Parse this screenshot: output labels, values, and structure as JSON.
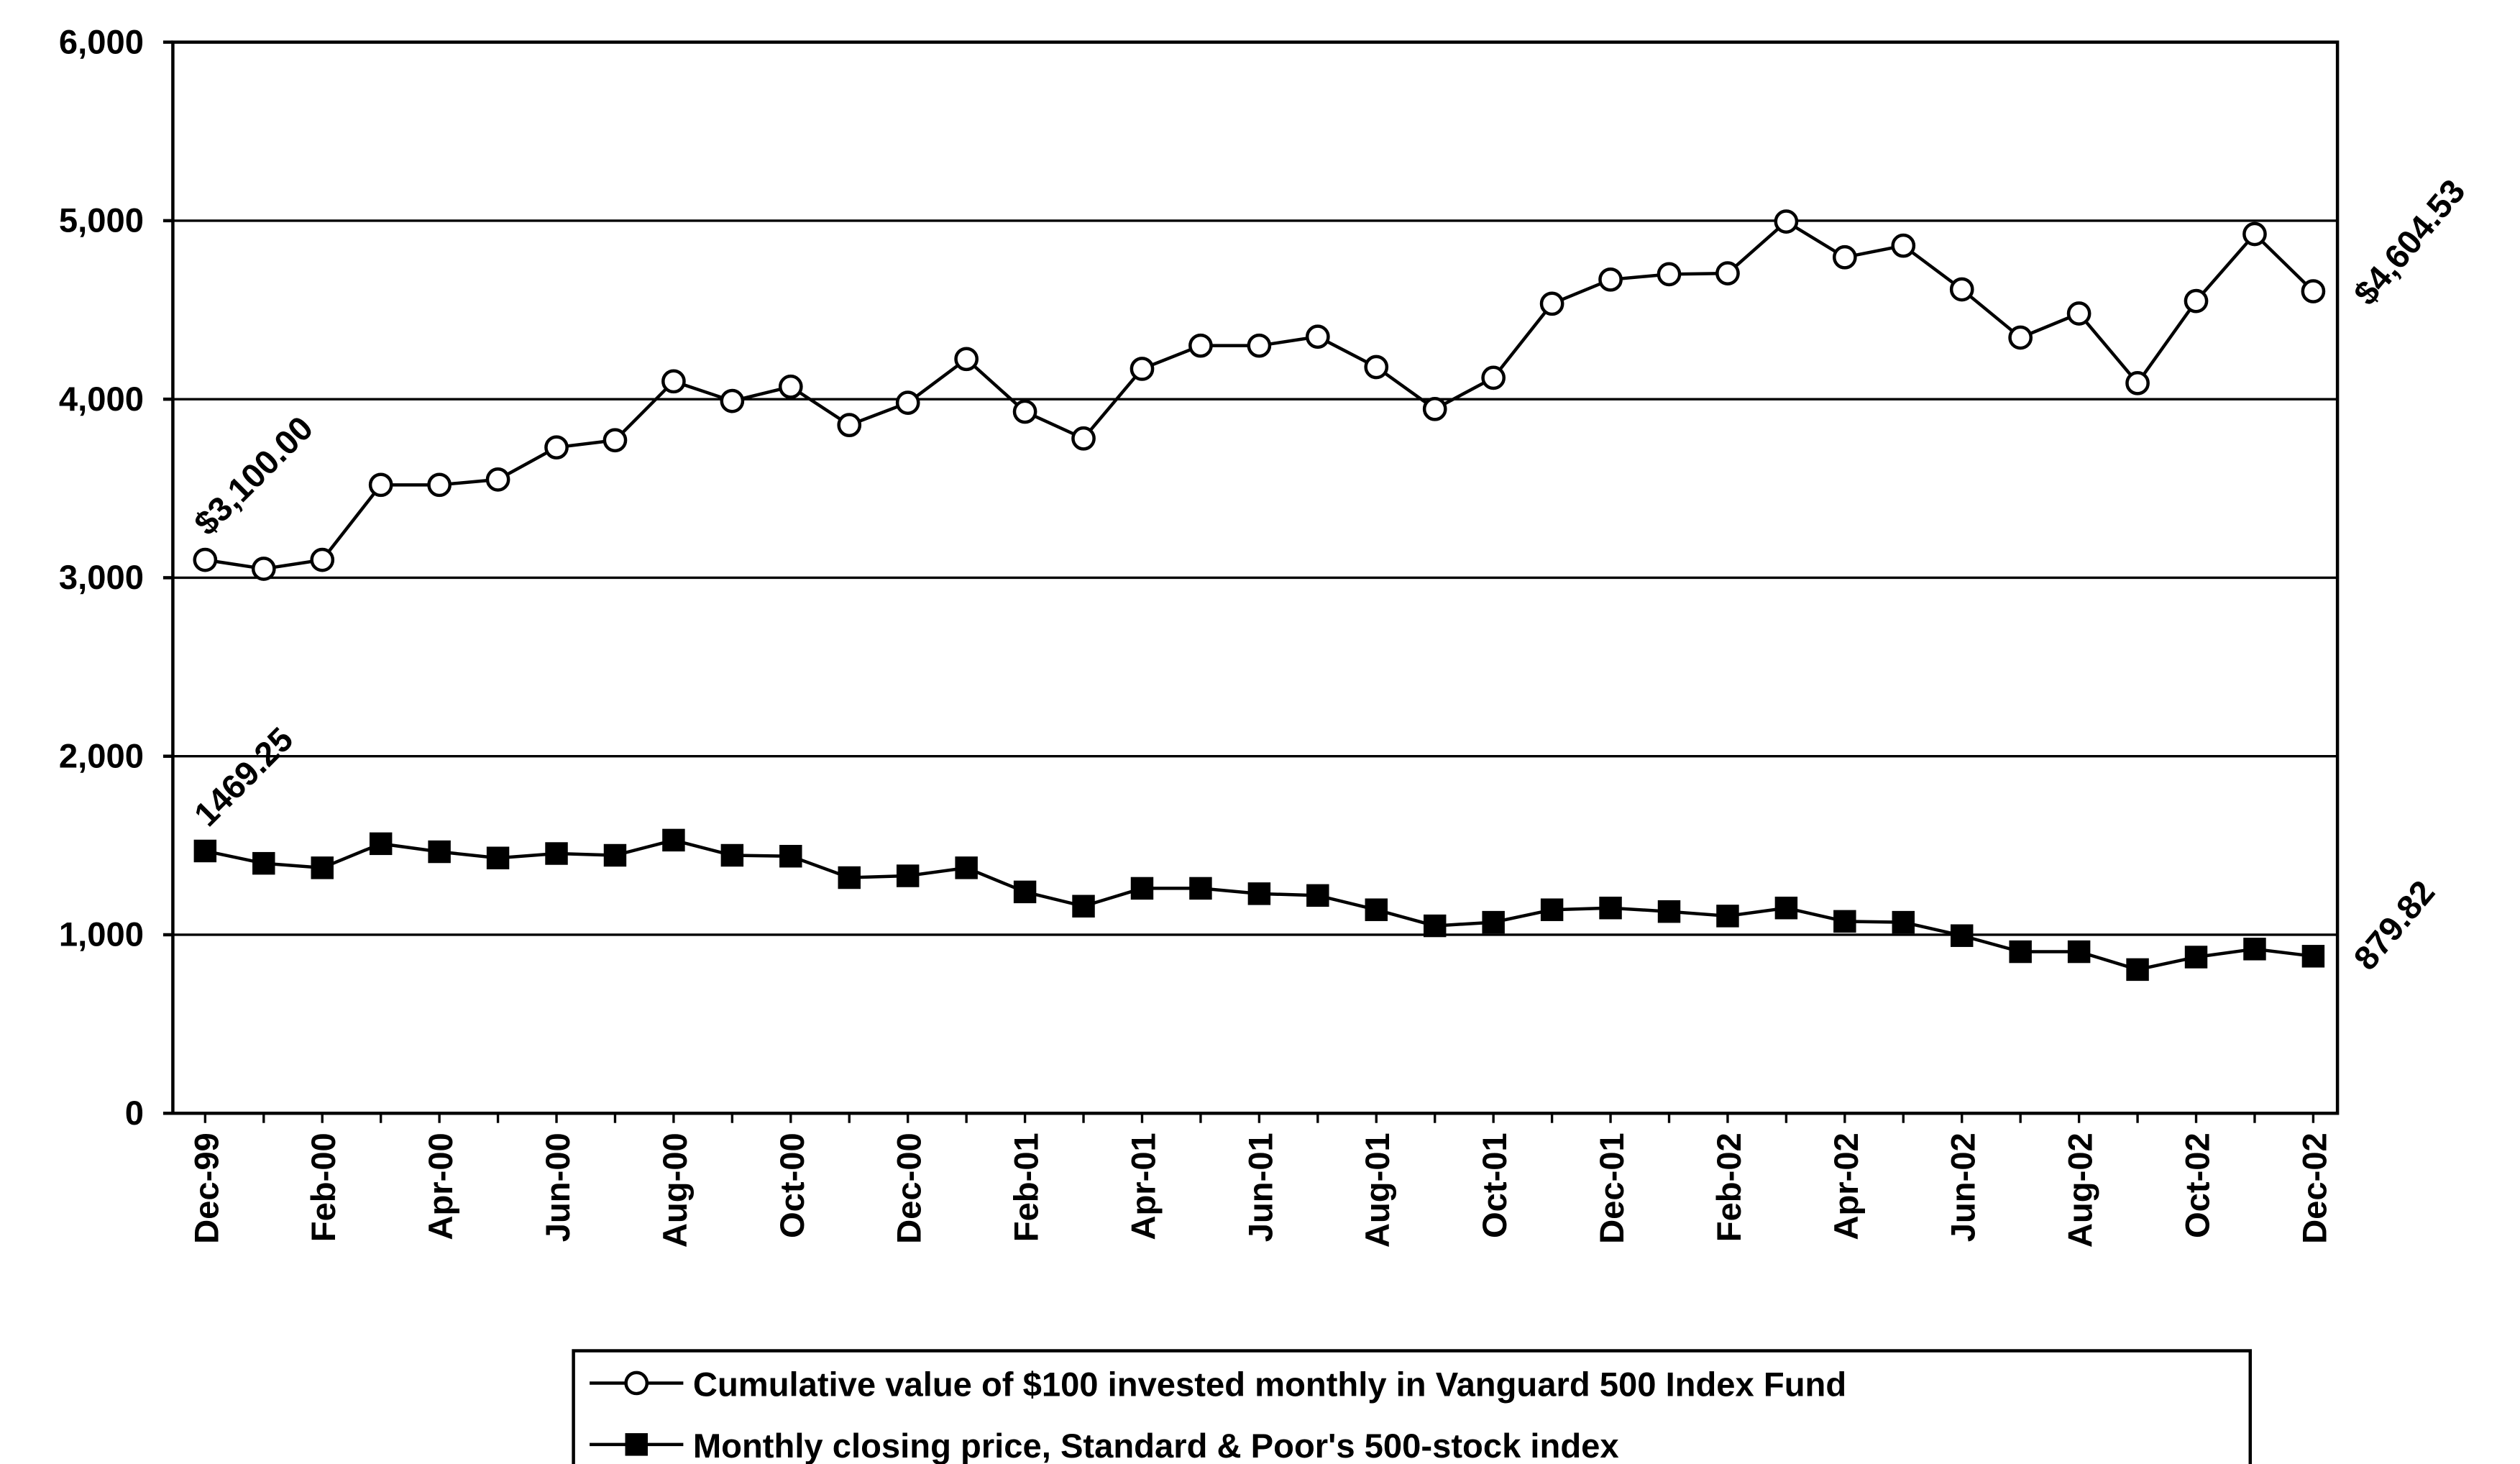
{
  "chart_data": {
    "type": "line",
    "categories": [
      "Dec-99",
      null,
      "Feb-00",
      null,
      "Apr-00",
      null,
      "Jun-00",
      null,
      "Aug-00",
      null,
      "Oct-00",
      null,
      "Dec-00",
      null,
      "Feb-01",
      null,
      "Apr-01",
      null,
      "Jun-01",
      null,
      "Aug-01",
      null,
      "Oct-01",
      null,
      "Dec-01",
      null,
      "Feb-02",
      null,
      "Apr-02",
      null,
      "Jun-02",
      null,
      "Aug-02",
      null,
      "Oct-02",
      null,
      "Dec-02"
    ],
    "series": [
      {
        "name": "Cumulative value of $100 invested monthly in Vanguard 500 Index Fund",
        "color": "#000000",
        "marker": "circle",
        "values": [
          3100,
          3050,
          3100,
          3520,
          3520,
          3550,
          3730,
          3770,
          4100,
          3990,
          4070,
          3855,
          3980,
          4225,
          3930,
          3780,
          4170,
          4300,
          4300,
          4350,
          4180,
          3945,
          4120,
          4535,
          4670,
          4700,
          4705,
          4995,
          4795,
          4860,
          4615,
          4345,
          4480,
          4090,
          4550,
          4925,
          4604.53
        ],
        "value_labels": [
          "$3,100.00",
          null,
          null,
          null,
          null,
          null,
          null,
          null,
          null,
          null,
          null,
          null,
          null,
          null,
          null,
          null,
          null,
          null,
          null,
          null,
          null,
          null,
          null,
          null,
          null,
          null,
          null,
          null,
          null,
          null,
          null,
          null,
          null,
          null,
          null,
          null,
          "$4,604.53"
        ]
      },
      {
        "name": "Monthly closing price, Standard & Poor's 500-stock index",
        "color": "#000000",
        "marker": "square",
        "values": [
          1469.25,
          1400,
          1375,
          1510,
          1465,
          1430,
          1455,
          1445,
          1530,
          1445,
          1440,
          1320,
          1330,
          1375,
          1240,
          1160,
          1260,
          1260,
          1230,
          1220,
          1140,
          1050,
          1070,
          1140,
          1150,
          1130,
          1105,
          1150,
          1075,
          1070,
          995,
          905,
          905,
          805,
          875,
          920,
          879.82
        ],
        "labeled_points": [
          0,
          36
        ]
      }
    ],
    "ylim": [
      0,
      6000
    ],
    "yticks": [
      0,
      {
        "value": 1000,
        "label": "1,000"
      },
      {
        "value": 2000,
        "label": "2,000"
      },
      {
        "value": 3000,
        "label": "3,000"
      },
      {
        "value": 4000,
        "label": "4,000"
      },
      {
        "value": 5000,
        "label": "5,000"
      },
      {
        "value": 6000,
        "label": "6,000"
      }
    ],
    "grid": true,
    "legend": "bottom"
  }
}
